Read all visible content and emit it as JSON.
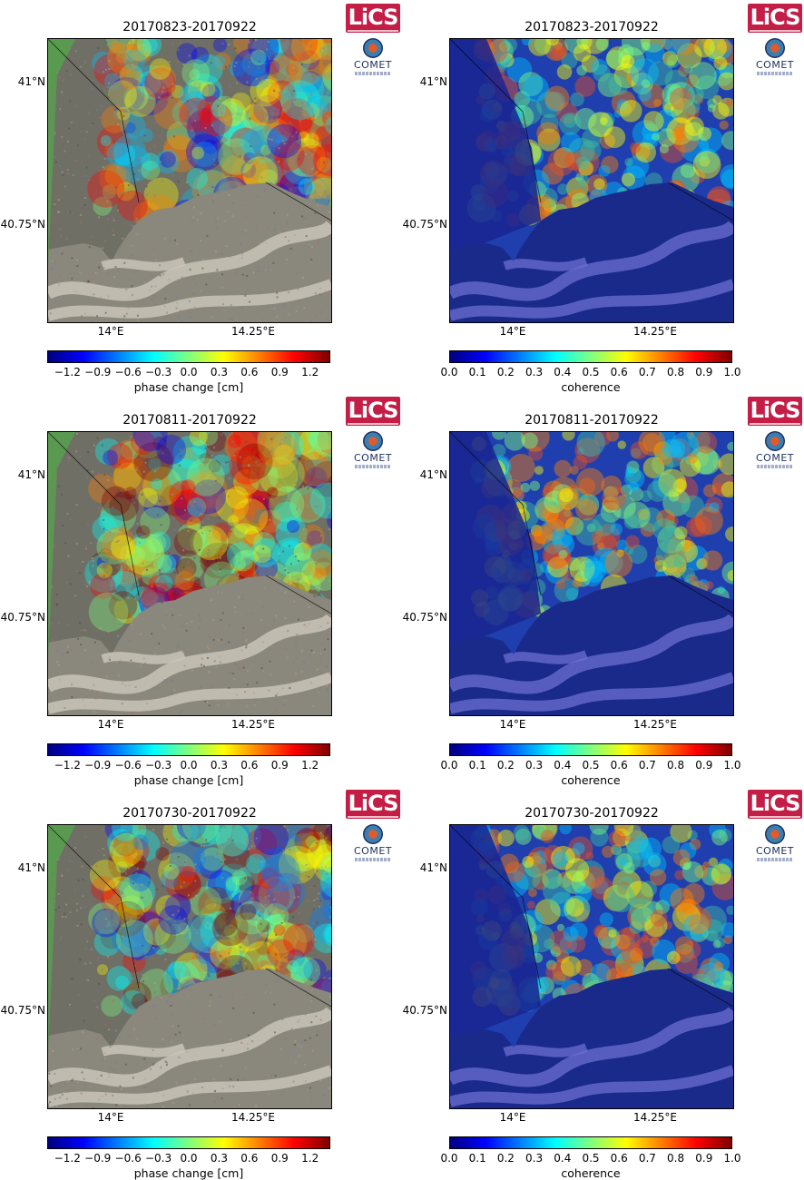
{
  "chart_data": [
    {
      "type": "heatmap",
      "title": "20170823-20170922",
      "product": "phase",
      "xlabel": "",
      "ylabel": "",
      "xticks": [
        "14°E",
        "14.25°E"
      ],
      "yticks": [
        "41°N",
        "40.75°N"
      ],
      "colorbar": {
        "label": "phase change [cm]",
        "ticks": [
          "−1.2",
          "−0.9",
          "−0.6",
          "−0.3",
          "0.0",
          "0.3",
          "0.6",
          "0.9",
          "1.2"
        ],
        "range": [
          -1.4,
          1.4
        ]
      }
    },
    {
      "type": "heatmap",
      "title": "20170823-20170922",
      "product": "coherence",
      "xlabel": "",
      "ylabel": "",
      "xticks": [
        "14°E",
        "14.25°E"
      ],
      "yticks": [
        "41°N",
        "40.75°N"
      ],
      "colorbar": {
        "label": "coherence",
        "ticks": [
          "0.0",
          "0.1",
          "0.2",
          "0.3",
          "0.4",
          "0.5",
          "0.6",
          "0.7",
          "0.8",
          "0.9",
          "1.0"
        ],
        "range": [
          0,
          1
        ]
      }
    },
    {
      "type": "heatmap",
      "title": "20170811-20170922",
      "product": "phase",
      "xlabel": "",
      "ylabel": "",
      "xticks": [
        "14°E",
        "14.25°E"
      ],
      "yticks": [
        "41°N",
        "40.75°N"
      ],
      "colorbar": {
        "label": "phase change [cm]",
        "ticks": [
          "−1.2",
          "−0.9",
          "−0.6",
          "−0.3",
          "0.0",
          "0.3",
          "0.6",
          "0.9",
          "1.2"
        ],
        "range": [
          -1.4,
          1.4
        ]
      }
    },
    {
      "type": "heatmap",
      "title": "20170811-20170922",
      "product": "coherence",
      "xlabel": "",
      "ylabel": "",
      "xticks": [
        "14°E",
        "14.25°E"
      ],
      "yticks": [
        "41°N",
        "40.75°N"
      ],
      "colorbar": {
        "label": "coherence",
        "ticks": [
          "0.0",
          "0.1",
          "0.2",
          "0.3",
          "0.4",
          "0.5",
          "0.6",
          "0.7",
          "0.8",
          "0.9",
          "1.0"
        ],
        "range": [
          0,
          1
        ]
      }
    },
    {
      "type": "heatmap",
      "title": "20170730-20170922",
      "product": "phase",
      "xlabel": "",
      "ylabel": "",
      "xticks": [
        "14°E",
        "14.25°E"
      ],
      "yticks": [
        "41°N",
        "40.75°N"
      ],
      "colorbar": {
        "label": "phase change [cm]",
        "ticks": [
          "−1.2",
          "−0.9",
          "−0.6",
          "−0.3",
          "0.0",
          "0.3",
          "0.6",
          "0.9",
          "1.2"
        ],
        "range": [
          -1.4,
          1.4
        ]
      }
    },
    {
      "type": "heatmap",
      "title": "20170730-20170922",
      "product": "coherence",
      "xlabel": "",
      "ylabel": "",
      "xticks": [
        "14°E",
        "14.25°E"
      ],
      "yticks": [
        "41°N",
        "40.75°N"
      ],
      "colorbar": {
        "label": "coherence",
        "ticks": [
          "0.0",
          "0.1",
          "0.2",
          "0.3",
          "0.4",
          "0.5",
          "0.6",
          "0.7",
          "0.8",
          "0.9",
          "1.0"
        ],
        "range": [
          0,
          1
        ]
      }
    }
  ],
  "logos": {
    "lics": "LiCS",
    "comet": "COMET"
  },
  "colors": {
    "jet": [
      "#00007f",
      "#0000ff",
      "#007fff",
      "#00ffff",
      "#7fff7f",
      "#ffff00",
      "#ff7f00",
      "#ff0000",
      "#7f0000"
    ],
    "sea_coherence": "#1a2a8a",
    "land_grey": "#6f6f66",
    "mask_green": "#5a9a50",
    "sea_phase": "#c8c4b8"
  }
}
